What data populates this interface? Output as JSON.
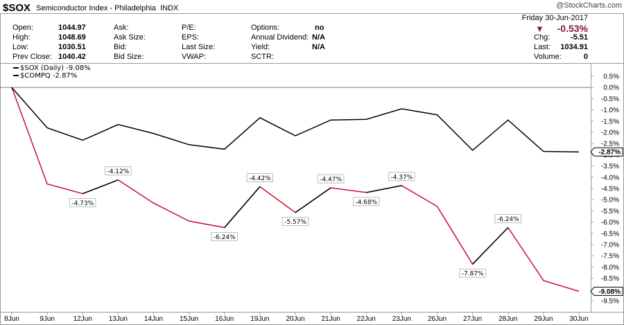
{
  "header": {
    "symbol": "$SOX",
    "name": "Semiconductor Index - Philadelphia",
    "exchange": "INDX",
    "watermark": "@StockCharts.com",
    "col1": [
      {
        "label": "Open:",
        "value": "1044.97"
      },
      {
        "label": "High:",
        "value": "1048.69"
      },
      {
        "label": "Low:",
        "value": "1030.51"
      },
      {
        "label": "Prev Close:",
        "value": "1040.42"
      }
    ],
    "col2": [
      "Ask:",
      "Ask Size:",
      "Bid:",
      "Bid Size:"
    ],
    "col3": [
      "P/E:",
      "EPS:",
      "Last Size:",
      "VWAP:"
    ],
    "col4": [
      {
        "label": "Options:",
        "value": "no"
      },
      {
        "label": "Annual Dividend:",
        "value": "N/A"
      },
      {
        "label": "Yield:",
        "value": "N/A"
      },
      {
        "label": "SCTR:",
        "value": ""
      }
    ],
    "date": "Friday  30-Jun-2017",
    "pct_change": "-0.53%",
    "right": [
      {
        "label": "Chg:",
        "value": "-5.51"
      },
      {
        "label": "Last:",
        "value": "1034.91"
      },
      {
        "label": "Volume:",
        "value": "0"
      }
    ],
    "down_color": "#8a1538"
  },
  "legend": [
    {
      "text": "$SOX (Daily) -9.08%"
    },
    {
      "text": "$COMPQ -2.87%"
    }
  ],
  "chart_data": {
    "type": "line",
    "categories": [
      "8Jun",
      "9Jun",
      "12Jun",
      "13Jun",
      "14Jun",
      "15Jun",
      "16Jun",
      "19Jun",
      "20Jun",
      "21Jun",
      "22Jun",
      "23Jun",
      "26Jun",
      "27Jun",
      "28Jun",
      "29Jun",
      "30Jun"
    ],
    "series": [
      {
        "name": "$SOX (Daily)",
        "color": "#c8102e",
        "values": [
          0,
          -4.3,
          -4.73,
          -4.12,
          -5.15,
          -5.95,
          -6.24,
          -4.42,
          -5.57,
          -4.47,
          -4.68,
          -4.37,
          -5.3,
          -7.87,
          -6.24,
          -8.6,
          -9.08
        ],
        "labels": [
          null,
          null,
          "-4.73%",
          "-4.12%",
          null,
          null,
          "-6.24%",
          "-4.42%",
          "-5.57%",
          "-4.47%",
          "-4.68%",
          "-4.37%",
          null,
          "-7.87%",
          "-6.24%",
          null,
          null
        ]
      },
      {
        "name": "$COMPQ",
        "color": "#000000",
        "values": [
          0,
          -1.8,
          -2.35,
          -1.65,
          -2.05,
          -2.55,
          -2.75,
          -1.35,
          -2.15,
          -1.45,
          -1.42,
          -0.95,
          -1.22,
          -2.8,
          -1.45,
          -2.85,
          -2.87
        ],
        "labels": []
      }
    ],
    "yticks": [
      "0.5%",
      "0.0%",
      "-0.5%",
      "-1.0%",
      "-1.5%",
      "-2.0%",
      "-2.5%",
      "-3.0%",
      "-3.5%",
      "-4.0%",
      "-4.5%",
      "-5.0%",
      "-5.5%",
      "-6.0%",
      "-6.5%",
      "-7.0%",
      "-7.5%",
      "-8.0%",
      "-8.5%",
      "-9.0%",
      "-9.5%"
    ],
    "ylim": [
      -9.5,
      0.5
    ],
    "end_labels": [
      "-2.87%",
      "-9.08%"
    ]
  }
}
